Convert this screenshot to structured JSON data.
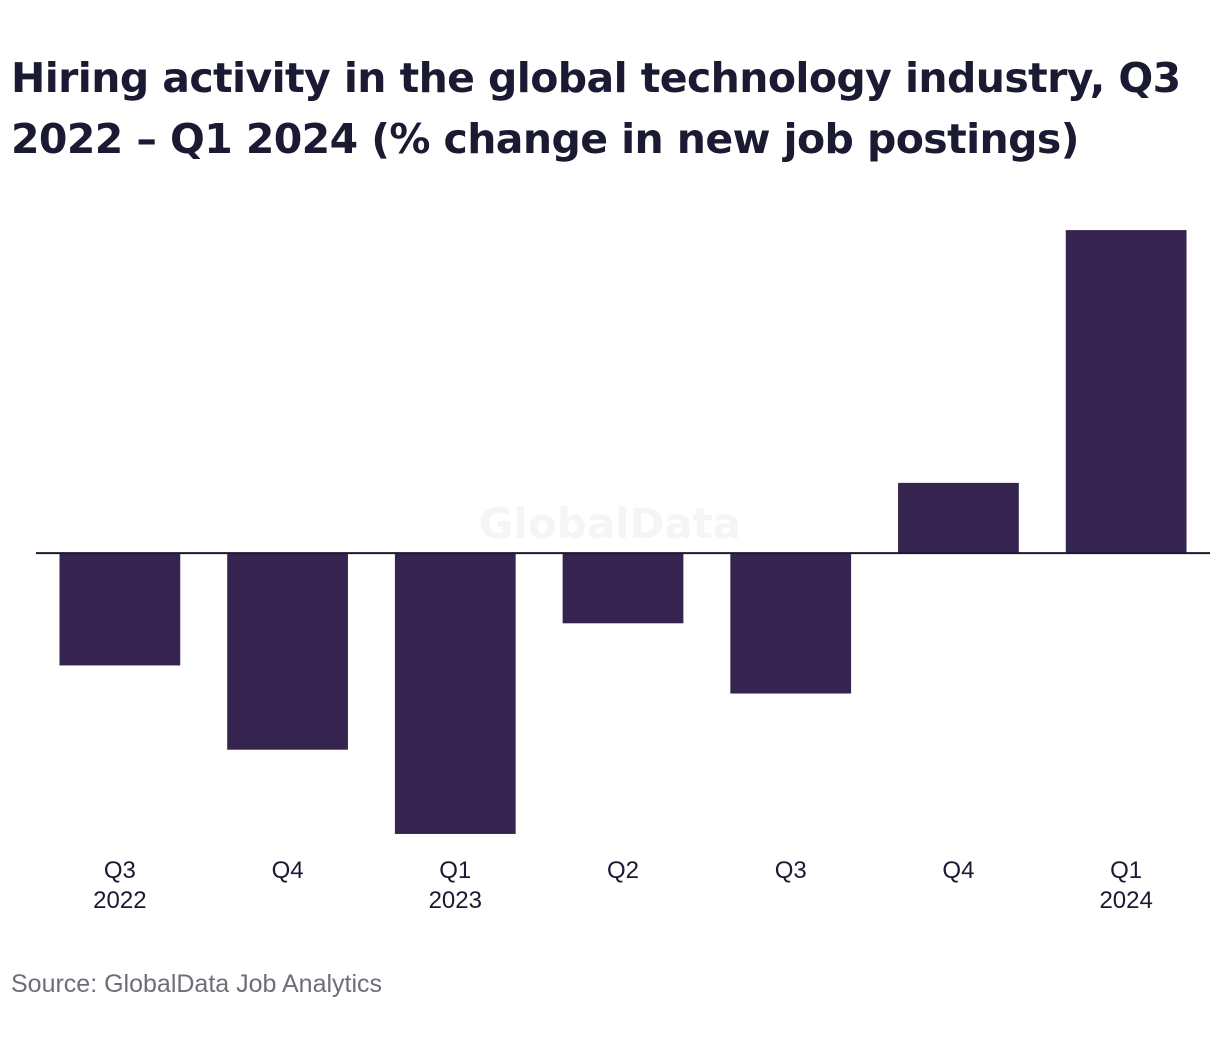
{
  "chart_data": {
    "type": "bar",
    "title": "Hiring activity in the global technology industry, Q3 2022 – Q1 2024 (% change in new job postings)",
    "categories": [
      {
        "quarter": "Q3",
        "year": "2022"
      },
      {
        "quarter": "Q4",
        "year": ""
      },
      {
        "quarter": "Q1",
        "year": "2023"
      },
      {
        "quarter": "Q2",
        "year": ""
      },
      {
        "quarter": "Q3",
        "year": ""
      },
      {
        "quarter": "Q4",
        "year": ""
      },
      {
        "quarter": "Q1",
        "year": "2024"
      }
    ],
    "values": [
      -4.0,
      -7.0,
      -10.0,
      -2.5,
      -5.0,
      2.5,
      11.5
    ],
    "ylim": [
      -10.5,
      12.5
    ],
    "xlabel": "",
    "ylabel": "",
    "grid": false,
    "bar_color": "#352450",
    "axis_color": "#1b1a33",
    "watermark": "GlobalData"
  },
  "source": "Source: GlobalData Job Analytics"
}
